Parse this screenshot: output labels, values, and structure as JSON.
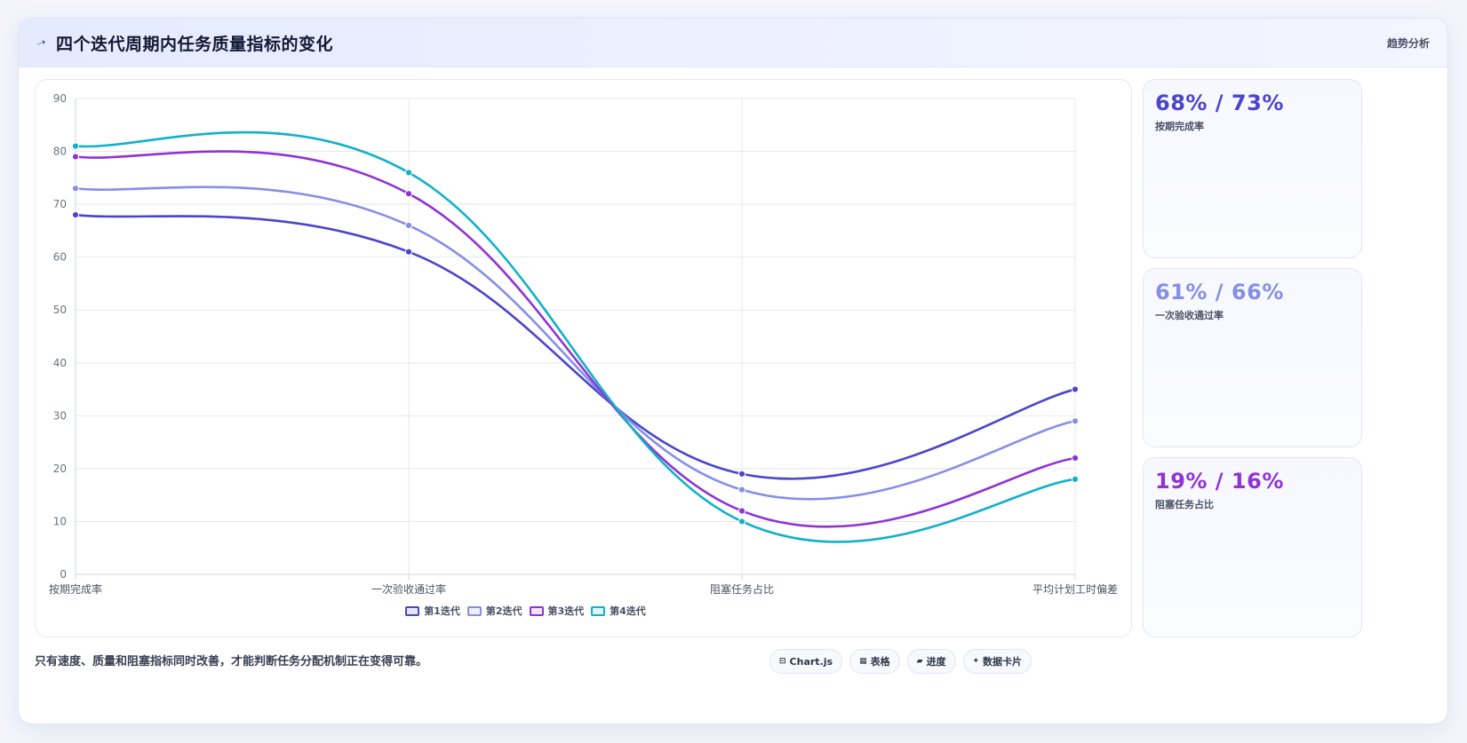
{
  "header": {
    "icon": "trend-icon",
    "title": "四个迭代周期内任务质量指标的变化",
    "badge": "趋势分析"
  },
  "chart_data": {
    "type": "line",
    "categories": [
      "按期完成率",
      "一次验收通过率",
      "阻塞任务占比",
      "平均计划工时偏差"
    ],
    "ylim": [
      0,
      90
    ],
    "yticks": [
      0,
      10,
      20,
      30,
      40,
      50,
      60,
      70,
      80,
      90
    ],
    "grid": true,
    "legend_position": "bottom",
    "series": [
      {
        "name": "第1迭代",
        "color": "#4c44cc",
        "values": [
          68,
          61,
          19,
          35
        ]
      },
      {
        "name": "第2迭代",
        "color": "#858fe6",
        "values": [
          73,
          66,
          16,
          29
        ]
      },
      {
        "name": "第3迭代",
        "color": "#9033d6",
        "values": [
          79,
          72,
          12,
          22
        ]
      },
      {
        "name": "第4迭代",
        "color": "#11b1c8",
        "values": [
          81,
          76,
          10,
          18
        ]
      }
    ]
  },
  "stats": [
    {
      "value": "68% / 73%",
      "label": "按期完成率",
      "color": "#4c44cc"
    },
    {
      "value": "61% / 66%",
      "label": "一次验收通过率",
      "color": "#858fe6"
    },
    {
      "value": "19% / 16%",
      "label": "阻塞任务占比",
      "color": "#9033d6"
    }
  ],
  "footer": {
    "note": "只有速度、质量和阻塞指标同时改善，才能判断任务分配机制正在变得可靠。",
    "tools": [
      {
        "icon": "chart-icon",
        "glyph": "⊟",
        "label": "Chart.js"
      },
      {
        "icon": "table-icon",
        "glyph": "▦",
        "label": "表格"
      },
      {
        "icon": "progress-icon",
        "glyph": "▰",
        "label": "进度"
      },
      {
        "icon": "card-icon",
        "glyph": "✦",
        "label": "数据卡片"
      }
    ]
  }
}
